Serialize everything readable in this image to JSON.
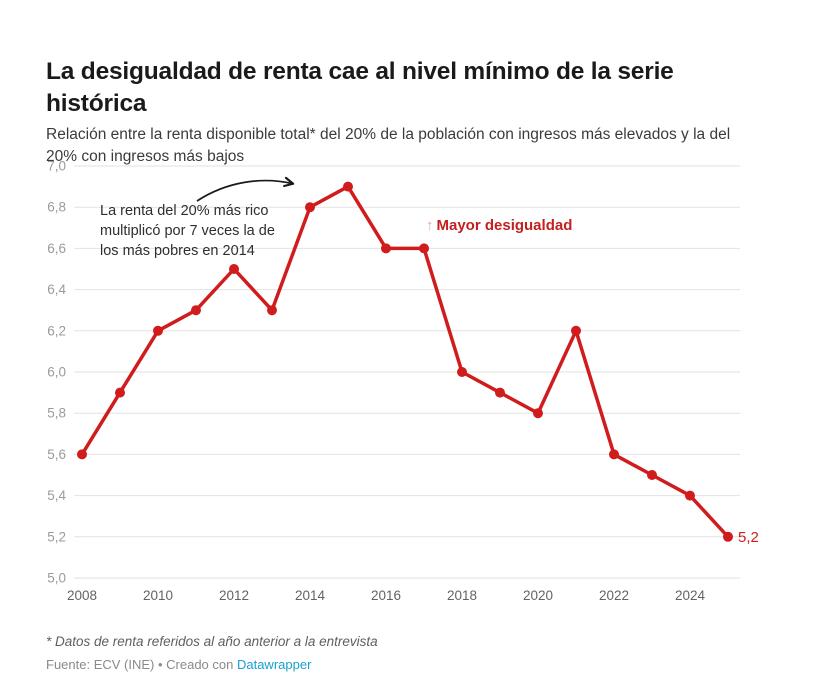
{
  "header": {
    "title": "La desigualdad de renta cae al nivel mínimo de la serie histórica",
    "subtitle": "Relación entre la renta disponible total* del 20% de la población con ingresos más elevados y la del 20% con ingresos más bajos"
  },
  "chart_data": {
    "type": "line",
    "x": [
      2008,
      2009,
      2010,
      2011,
      2012,
      2013,
      2014,
      2015,
      2016,
      2017,
      2018,
      2019,
      2020,
      2021,
      2022,
      2023,
      2024,
      2025
    ],
    "values": [
      5.6,
      5.9,
      6.2,
      6.3,
      6.5,
      6.3,
      6.8,
      6.9,
      6.6,
      6.6,
      6.0,
      5.9,
      5.8,
      6.2,
      5.6,
      5.5,
      5.4,
      5.2
    ],
    "xlim": [
      2008,
      2025
    ],
    "ylim": [
      5.0,
      7.0
    ],
    "y_ticks": [
      {
        "value": 7.0,
        "label": "7,0"
      },
      {
        "value": 6.8,
        "label": "6,8"
      },
      {
        "value": 6.6,
        "label": "6,6"
      },
      {
        "value": 6.4,
        "label": "6,4"
      },
      {
        "value": 6.2,
        "label": "6,2"
      },
      {
        "value": 6.0,
        "label": "6,0"
      },
      {
        "value": 5.8,
        "label": "5,8"
      },
      {
        "value": 5.6,
        "label": "5,6"
      },
      {
        "value": 5.4,
        "label": "5,4"
      },
      {
        "value": 5.2,
        "label": "5,2"
      },
      {
        "value": 5.0,
        "label": "5,0"
      }
    ],
    "x_ticks": [
      2008,
      2010,
      2012,
      2014,
      2016,
      2018,
      2020,
      2022,
      2024
    ],
    "grid": true,
    "end_label": "5,2",
    "line_color": "#d01c1c",
    "grid_color": "#e2e2e2"
  },
  "annotations": {
    "callout_text": "La renta del 20% más rico\nmultiplicó por 7 veces la de\nlos más pobres en 2014",
    "direction_arrow": "↑",
    "direction_label": "Mayor desigualdad"
  },
  "footer": {
    "note": "* Datos de renta referidos al año anterior a la entrevista",
    "source_prefix": "Fuente: ECV (INE) • Creado con ",
    "source_link": "Datawrapper"
  },
  "colors": {
    "line_red": "#d01c1c",
    "direction_red": "#c4201f",
    "direction_arrow_pink": "#e3a6a2",
    "link_blue": "#18a1cd",
    "title_text": "#1a1a1a",
    "grid": "#e2e2e2"
  }
}
